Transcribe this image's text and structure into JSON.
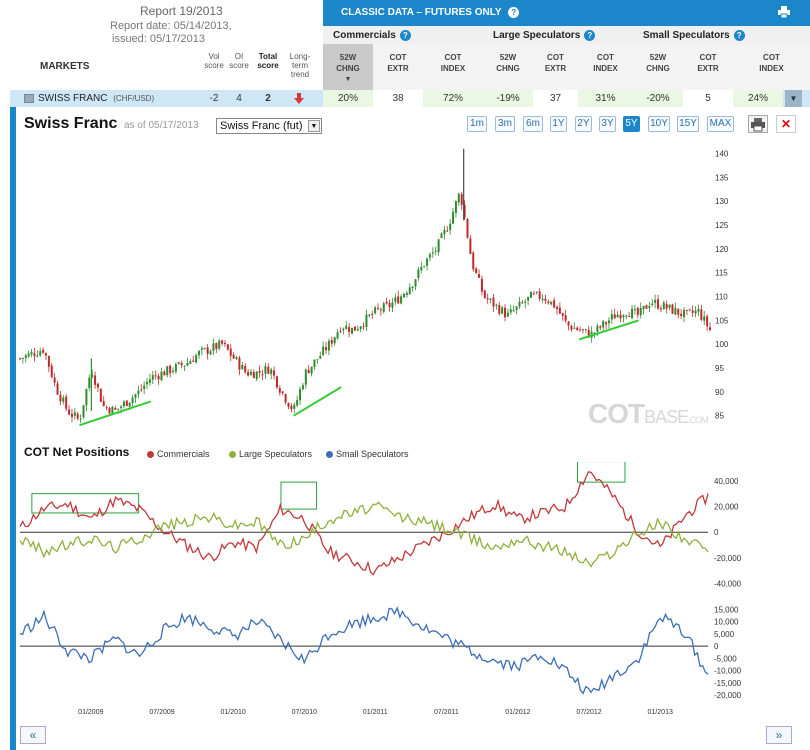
{
  "header": {
    "report_title": "Report 19/2013",
    "report_date": "Report date: 05/14/2013,",
    "issued": "issued: 05/17/2013",
    "markets_label": "MARKETS",
    "cols": {
      "vol": [
        "Vol",
        "score"
      ],
      "oi": [
        "OI",
        "score"
      ],
      "total": [
        "Total",
        "score"
      ],
      "trend": [
        "Long-",
        "term",
        "trend"
      ]
    },
    "banner": "CLASSIC DATA – FUTURES ONLY",
    "groups": [
      "Commercials",
      "Large Speculators",
      "Small Speculators"
    ],
    "subcols": [
      [
        "52W",
        "CHNG"
      ],
      [
        "COT",
        "EXTR"
      ],
      [
        "COT",
        "INDEX"
      ],
      [
        "52W",
        "CHNG"
      ],
      [
        "COT",
        "EXTR"
      ],
      [
        "COT",
        "INDEX"
      ],
      [
        "52W",
        "CHNG"
      ],
      [
        "COT",
        "EXTR"
      ],
      [
        "COT",
        "INDEX"
      ]
    ]
  },
  "row": {
    "market": "SWISS FRANC",
    "pair": "(CHF/USD)",
    "vol": "-2",
    "oi": "4",
    "total": "2",
    "values": [
      "20%",
      "38",
      "72%",
      "-19%",
      "37",
      "31%",
      "-20%",
      "5",
      "24%"
    ]
  },
  "chart": {
    "title": "Swiss Franc",
    "as_of": "as of 05/17/2013",
    "select_value": "Swiss Franc (fut)",
    "ranges": [
      "1m",
      "3m",
      "6m",
      "1Y",
      "2Y",
      "3Y",
      "5Y",
      "10Y",
      "15Y",
      "MAX"
    ],
    "active_range": "5Y",
    "watermark_cot": "COT",
    "watermark_base": "BASE",
    "watermark_com": ".COM"
  },
  "cot": {
    "title": "COT Net Positions",
    "legend": [
      "Commercials",
      "Large Speculators",
      "Small Speculators"
    ]
  },
  "colors": {
    "accent": "#1b86c9",
    "up": "#2e8b2e",
    "down": "#c0292b",
    "commercials": "#c0393b",
    "large_specs": "#8fb03c",
    "small_specs": "#3d6eb5",
    "trendline": "#33cc33"
  },
  "chart_data": [
    {
      "type": "candlestick",
      "title": "Swiss Franc",
      "ylim": [
        82,
        142
      ],
      "y_ticks": [
        85,
        90,
        95,
        100,
        105,
        110,
        115,
        120,
        125,
        130,
        135,
        140
      ],
      "x_ticks": [
        "01/2009",
        "07/2009",
        "01/2010",
        "07/2010",
        "01/2011",
        "07/2011",
        "01/2012",
        "07/2012",
        "01/2013"
      ],
      "x_start": "2008-07",
      "x_end": "2013-05",
      "close_path": [
        [
          "2008-07",
          97
        ],
        [
          "2008-09",
          99
        ],
        [
          "2008-10",
          91
        ],
        [
          "2008-11",
          86
        ],
        [
          "2008-12",
          84
        ],
        [
          "2009-01",
          95
        ],
        [
          "2009-02",
          87
        ],
        [
          "2009-03",
          86
        ],
        [
          "2009-04",
          88
        ],
        [
          "2009-05",
          90
        ],
        [
          "2009-06",
          93
        ],
        [
          "2009-07",
          94
        ],
        [
          "2009-09",
          96
        ],
        [
          "2009-10",
          98
        ],
        [
          "2009-11",
          99
        ],
        [
          "2009-12",
          100
        ],
        [
          "2010-01",
          97
        ],
        [
          "2010-02",
          94
        ],
        [
          "2010-03",
          94
        ],
        [
          "2010-04",
          95
        ],
        [
          "2010-05",
          90
        ],
        [
          "2010-06",
          86
        ],
        [
          "2010-07",
          94
        ],
        [
          "2010-08",
          97
        ],
        [
          "2010-09",
          100
        ],
        [
          "2010-10",
          104
        ],
        [
          "2010-11",
          103
        ],
        [
          "2010-12",
          105
        ],
        [
          "2011-01",
          107
        ],
        [
          "2011-02",
          108
        ],
        [
          "2011-03",
          110
        ],
        [
          "2011-04",
          113
        ],
        [
          "2011-05",
          117
        ],
        [
          "2011-06",
          120
        ],
        [
          "2011-07",
          125
        ],
        [
          "2011-08",
          132
        ],
        [
          "2011-09",
          117
        ],
        [
          "2011-10",
          110
        ],
        [
          "2011-11",
          108
        ],
        [
          "2011-12",
          106
        ],
        [
          "2012-01",
          108
        ],
        [
          "2012-02",
          110
        ],
        [
          "2012-03",
          110
        ],
        [
          "2012-04",
          108
        ],
        [
          "2012-05",
          104
        ],
        [
          "2012-06",
          103
        ],
        [
          "2012-07",
          102
        ],
        [
          "2012-08",
          104
        ],
        [
          "2012-09",
          106
        ],
        [
          "2012-10",
          107
        ],
        [
          "2012-11",
          106
        ],
        [
          "2012-12",
          109
        ],
        [
          "2013-01",
          108
        ],
        [
          "2013-02",
          107
        ],
        [
          "2013-03",
          106
        ],
        [
          "2013-04",
          107
        ],
        [
          "2013-05",
          103
        ]
      ],
      "trendlines": [
        [
          [
            "2008-12",
            83
          ],
          [
            "2009-06",
            88
          ]
        ],
        [
          [
            "2010-06",
            85
          ],
          [
            "2010-10",
            91
          ]
        ],
        [
          [
            "2012-06",
            101
          ],
          [
            "2012-11",
            105
          ]
        ]
      ]
    },
    {
      "type": "line",
      "title": "COT Net Positions",
      "ylim": [
        -45000,
        50000
      ],
      "y_ticks": [
        40000,
        20000,
        0,
        -20000,
        -40000
      ],
      "y_tick_labels": [
        "40,000",
        "20,000",
        "0",
        "-20,000",
        "-40,000"
      ],
      "series": [
        {
          "name": "Commercials",
          "values": [
            [
              "2008-07",
              3000
            ],
            [
              "2008-09",
              18000
            ],
            [
              "2008-11",
              22000
            ],
            [
              "2009-01",
              10000
            ],
            [
              "2009-03",
              25000
            ],
            [
              "2009-05",
              18000
            ],
            [
              "2009-07",
              2000
            ],
            [
              "2009-09",
              -10000
            ],
            [
              "2009-11",
              -20000
            ],
            [
              "2010-01",
              -8000
            ],
            [
              "2010-03",
              -12000
            ],
            [
              "2010-05",
              18000
            ],
            [
              "2010-07",
              10000
            ],
            [
              "2010-09",
              -15000
            ],
            [
              "2010-11",
              -22000
            ],
            [
              "2011-01",
              -30000
            ],
            [
              "2011-03",
              -20000
            ],
            [
              "2011-05",
              -10000
            ],
            [
              "2011-07",
              0
            ],
            [
              "2011-09",
              12000
            ],
            [
              "2011-11",
              22000
            ],
            [
              "2012-01",
              10000
            ],
            [
              "2012-03",
              15000
            ],
            [
              "2012-05",
              20000
            ],
            [
              "2012-07",
              48000
            ],
            [
              "2012-09",
              28000
            ],
            [
              "2012-11",
              2000
            ],
            [
              "2013-01",
              -12000
            ],
            [
              "2013-03",
              12000
            ],
            [
              "2013-05",
              28000
            ]
          ]
        },
        {
          "name": "Large Speculators",
          "values": [
            [
              "2008-07",
              -5000
            ],
            [
              "2008-09",
              -15000
            ],
            [
              "2008-11",
              -10000
            ],
            [
              "2009-01",
              -5000
            ],
            [
              "2009-03",
              -12000
            ],
            [
              "2009-05",
              -5000
            ],
            [
              "2009-07",
              5000
            ],
            [
              "2009-09",
              8000
            ],
            [
              "2009-11",
              12000
            ],
            [
              "2010-01",
              5000
            ],
            [
              "2010-03",
              8000
            ],
            [
              "2010-05",
              -10000
            ],
            [
              "2010-07",
              -5000
            ],
            [
              "2010-09",
              10000
            ],
            [
              "2010-11",
              15000
            ],
            [
              "2011-01",
              20000
            ],
            [
              "2011-03",
              12000
            ],
            [
              "2011-05",
              8000
            ],
            [
              "2011-07",
              3000
            ],
            [
              "2011-09",
              -5000
            ],
            [
              "2011-11",
              -12000
            ],
            [
              "2012-01",
              -5000
            ],
            [
              "2012-03",
              -10000
            ],
            [
              "2012-05",
              -15000
            ],
            [
              "2012-07",
              -25000
            ],
            [
              "2012-09",
              -15000
            ],
            [
              "2012-11",
              -2000
            ],
            [
              "2013-01",
              8000
            ],
            [
              "2013-03",
              -5000
            ],
            [
              "2013-05",
              -15000
            ]
          ]
        }
      ]
    },
    {
      "type": "line",
      "ylim": [
        -22000,
        18000
      ],
      "y_ticks": [
        15000,
        10000,
        5000,
        0,
        -5000,
        -10000,
        -15000,
        -20000
      ],
      "y_tick_labels": [
        "15,000",
        "10,000",
        "5,000",
        "0",
        "-5,000",
        "-10,000",
        "-15,000",
        "-20,000"
      ],
      "series": [
        {
          "name": "Small Speculators",
          "values": [
            [
              "2008-07",
              5000
            ],
            [
              "2008-09",
              12000
            ],
            [
              "2008-11",
              -2000
            ],
            [
              "2009-01",
              -5000
            ],
            [
              "2009-03",
              3000
            ],
            [
              "2009-05",
              -4000
            ],
            [
              "2009-07",
              6000
            ],
            [
              "2009-09",
              12000
            ],
            [
              "2009-11",
              8000
            ],
            [
              "2010-01",
              4000
            ],
            [
              "2010-03",
              10000
            ],
            [
              "2010-05",
              2000
            ],
            [
              "2010-07",
              -6000
            ],
            [
              "2010-09",
              5000
            ],
            [
              "2010-11",
              9000
            ],
            [
              "2011-01",
              12000
            ],
            [
              "2011-03",
              14000
            ],
            [
              "2011-05",
              8000
            ],
            [
              "2011-07",
              3000
            ],
            [
              "2011-09",
              -2000
            ],
            [
              "2011-11",
              -6000
            ],
            [
              "2012-01",
              -8000
            ],
            [
              "2012-03",
              -3000
            ],
            [
              "2012-05",
              -10000
            ],
            [
              "2012-07",
              -20000
            ],
            [
              "2012-09",
              -12000
            ],
            [
              "2012-11",
              -6000
            ],
            [
              "2013-01",
              12000
            ],
            [
              "2013-03",
              6000
            ],
            [
              "2013-05",
              -12000
            ]
          ]
        }
      ]
    }
  ]
}
